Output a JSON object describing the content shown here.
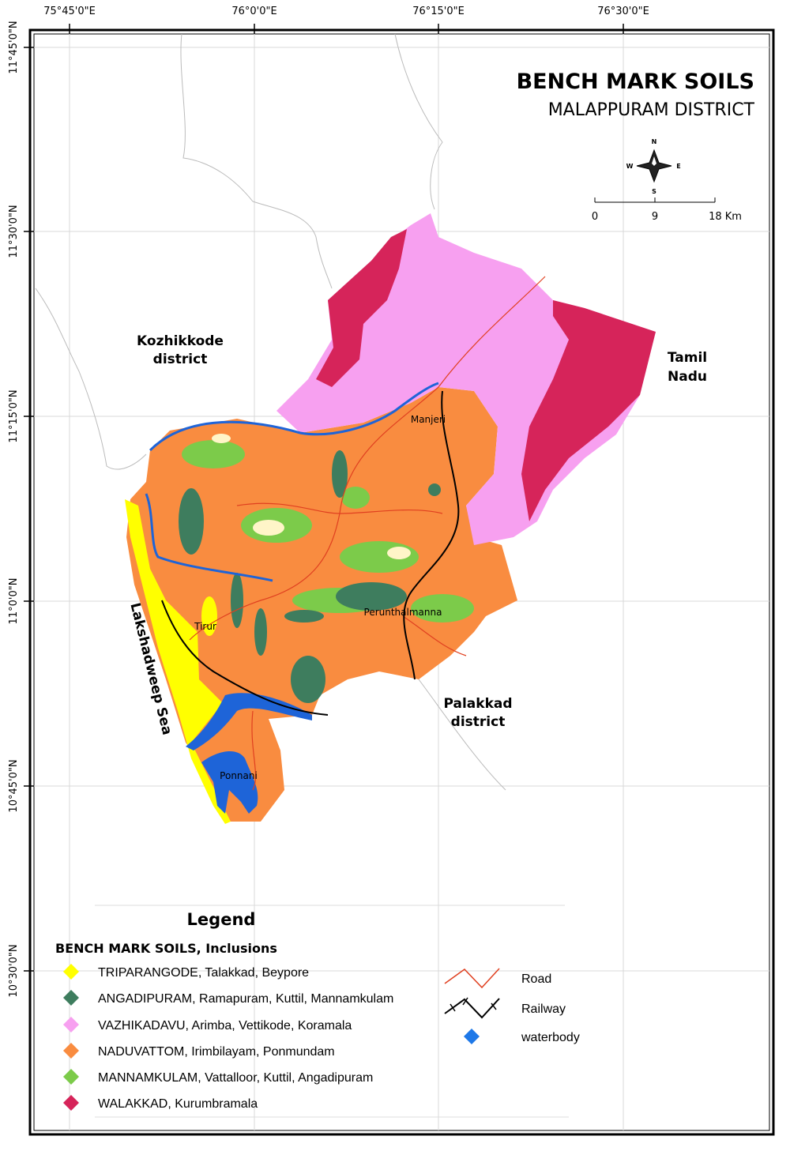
{
  "header": {
    "title": "BENCH MARK SOILS",
    "subtitle": "MALAPPURAM DISTRICT"
  },
  "longitude_labels": [
    "75°45'0\"E",
    "76°0'0\"E",
    "76°15'0\"E",
    "76°30'0\"E"
  ],
  "latitude_labels": [
    "11°45'0\"N",
    "11°30'0\"N",
    "11°15'0\"N",
    "11°0'0\"N",
    "10°45'0\"N",
    "10°30'0\"N"
  ],
  "compass": {
    "north": "N",
    "south": "S",
    "east": "E",
    "west": "W"
  },
  "scale_bar": {
    "labels": [
      "0",
      "9",
      "18 Km"
    ]
  },
  "regions": [
    {
      "lines": [
        "Kozhikkode",
        "district"
      ]
    },
    {
      "lines": [
        "Tamil",
        "Nadu"
      ]
    },
    {
      "lines": [
        "Palakkad",
        "district"
      ]
    },
    {
      "lines": [
        "Lakshadweep Sea"
      ]
    }
  ],
  "towns": [
    "Manjeri",
    "Perunthalmanna",
    "Tirur",
    "Ponnani"
  ],
  "legend": {
    "title": "Legend",
    "subtitle": "BENCH MARK SOILS, Inclusions",
    "soils": [
      "TRIPARANGODE, Talakkad, Beypore",
      "ANGADIPURAM, Ramapuram, Kuttil, Mannamkulam",
      "VAZHIKADAVU, Arimba, Vettikode, Koramala",
      "NADUVATTOM, Irimbilayam, Ponmundam",
      "MANNAMKULAM, Vattalloor, Kuttil, Angadipuram",
      "WALAKKAD, Kurumbramala"
    ],
    "features": [
      "Road",
      "Railway",
      "waterbody"
    ]
  }
}
